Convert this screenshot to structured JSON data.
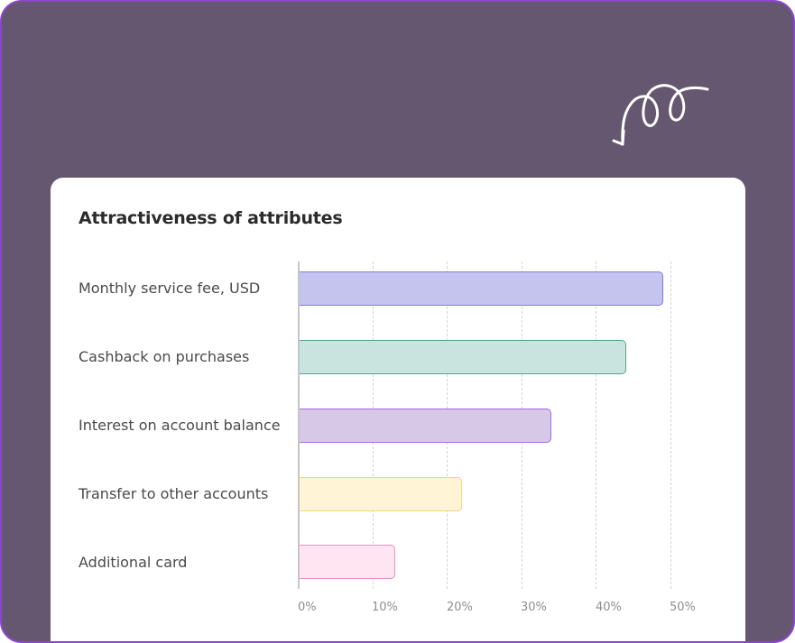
{
  "card": {
    "title": "Attractiveness of attributes"
  },
  "decoration": {
    "icon": "curly-arrow-icon"
  },
  "colors": {
    "frame_bg": "#655770",
    "frame_border": "#8b45d2",
    "bars": [
      {
        "fill": "#c5c4ee",
        "stroke": "#7c79f0"
      },
      {
        "fill": "#c9e4df",
        "stroke": "#5f9f8d"
      },
      {
        "fill": "#d8c8e7",
        "stroke": "#a66ae0"
      },
      {
        "fill": "#fff4d6",
        "stroke": "#f6d37a"
      },
      {
        "fill": "#ffe4f1",
        "stroke": "#f08bc4"
      }
    ]
  },
  "chart_data": {
    "type": "bar",
    "orientation": "horizontal",
    "title": "Attractiveness of attributes",
    "categories": [
      "Monthly service fee, USD",
      "Cashback on purchases",
      "Interest on account balance",
      "Transfer to other accounts",
      "Additional card"
    ],
    "values": [
      49,
      44,
      34,
      22,
      13
    ],
    "unit": "%",
    "xlabel": "",
    "ylabel": "",
    "xlim": [
      0,
      50
    ],
    "xticks": [
      "0%",
      "10%",
      "20%",
      "30%",
      "40%",
      "50%"
    ],
    "grid": "vertical dashed",
    "legend": "none"
  }
}
